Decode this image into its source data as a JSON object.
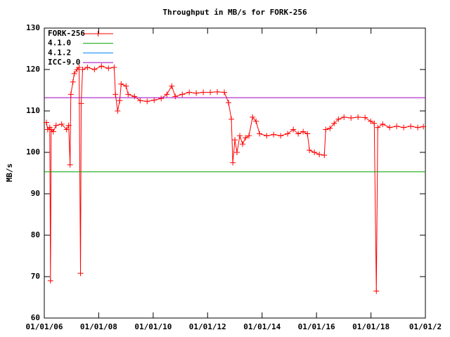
{
  "chart_data": {
    "type": "line",
    "title": "Throughput in MB/s for FORK-256",
    "ylabel": "MB/s",
    "xlim": [
      "2006-01-01",
      "2020-01-01"
    ],
    "xticks": [
      {
        "value": "2006-01-01",
        "label": "01/01/06"
      },
      {
        "value": "2008-01-01",
        "label": "01/01/08"
      },
      {
        "value": "2010-01-01",
        "label": "01/01/10"
      },
      {
        "value": "2012-01-01",
        "label": "01/01/12"
      },
      {
        "value": "2014-01-01",
        "label": "01/01/14"
      },
      {
        "value": "2016-01-01",
        "label": "01/01/16"
      },
      {
        "value": "2018-01-01",
        "label": "01/01/18"
      },
      {
        "value": "2020-01-01",
        "label": "01/01/2"
      }
    ],
    "ylim": [
      60,
      130
    ],
    "yticks": [
      60,
      70,
      80,
      90,
      100,
      110,
      120,
      130
    ],
    "legend": "top-left",
    "series": [
      {
        "name": "FORK-256",
        "color": "#ff0000",
        "markers": true,
        "x": [
          "2006-01-30",
          "2006-02-16",
          "2006-03-15",
          "2006-03-25",
          "2006-04-03",
          "2006-05-01",
          "2006-06-08",
          "2006-08-22",
          "2006-10-27",
          "2006-11-24",
          "2006-12-13",
          "2006-12-23",
          "2007-01-20",
          "2007-02-07",
          "2007-03-16",
          "2007-04-13",
          "2007-05-02",
          "2007-05-11",
          "2007-05-30",
          "2007-08-03",
          "2007-11-05",
          "2008-02-07",
          "2008-05-11",
          "2008-07-26",
          "2008-08-13",
          "2008-09-11",
          "2008-10-09",
          "2008-10-28",
          "2009-01-02",
          "2009-01-30",
          "2009-04-25",
          "2009-07-10",
          "2009-10-12",
          "2010-01-14",
          "2010-04-18",
          "2010-07-03",
          "2010-09-07",
          "2010-10-24",
          "2011-01-26",
          "2011-04-30",
          "2011-08-02",
          "2011-11-04",
          "2012-02-06",
          "2012-05-10",
          "2012-08-12",
          "2012-10-08",
          "2012-11-15",
          "2012-12-04",
          "2013-01-01",
          "2013-01-29",
          "2013-03-08",
          "2013-04-15",
          "2013-05-23",
          "2013-07-09",
          "2013-08-26",
          "2013-10-12",
          "2013-11-28",
          "2014-03-03",
          "2014-06-05",
          "2014-09-07",
          "2014-12-10",
          "2015-02-24",
          "2015-05-01",
          "2015-07-06",
          "2015-09-01",
          "2015-09-29",
          "2015-12-04",
          "2016-02-08",
          "2016-04-15",
          "2016-05-04",
          "2016-06-30",
          "2016-08-25",
          "2016-10-21",
          "2017-01-04",
          "2017-04-08",
          "2017-07-11",
          "2017-10-13",
          "2017-12-28",
          "2018-02-14",
          "2018-03-14",
          "2018-04-02",
          "2018-06-07",
          "2018-09-09",
          "2018-12-12",
          "2019-03-16",
          "2019-06-18",
          "2019-09-20",
          "2019-12-05"
        ],
        "values": [
          107.2,
          105.5,
          106,
          69,
          105.5,
          105,
          106.5,
          106.8,
          105.5,
          106.5,
          97,
          114,
          117,
          119,
          120,
          120.5,
          70.8,
          111.8,
          120,
          120.5,
          120,
          120.8,
          120.3,
          120.5,
          114,
          110,
          112.5,
          116.5,
          116,
          114,
          113.5,
          112.5,
          112.3,
          112.6,
          113,
          114,
          116,
          113.5,
          114,
          114.5,
          114.3,
          114.5,
          114.5,
          114.6,
          114.5,
          112,
          108,
          97.5,
          103,
          100,
          104,
          102,
          103.5,
          104,
          108.5,
          107.5,
          104.5,
          104,
          104.3,
          104,
          104.5,
          105.5,
          104.5,
          105,
          104.5,
          100.5,
          100,
          99.5,
          99.3,
          105.5,
          105.8,
          107,
          108,
          108.5,
          108.3,
          108.5,
          108.4,
          107.5,
          107,
          66.5,
          106,
          106.8,
          106,
          106.3,
          106,
          106.3,
          106,
          106.2
        ]
      },
      {
        "name": "4.1.0",
        "color": "#00a000",
        "x": [
          "2006-01-01",
          "2020-01-01"
        ],
        "values": [
          95.3,
          95.3
        ]
      },
      {
        "name": "4.1.2",
        "color": "#0080ff",
        "x": [],
        "values": []
      },
      {
        "name": "ICC-9.0",
        "color": "#a000c0",
        "x": [
          "2006-01-01",
          "2020-01-01"
        ],
        "values": [
          113.2,
          113.2
        ]
      }
    ]
  }
}
